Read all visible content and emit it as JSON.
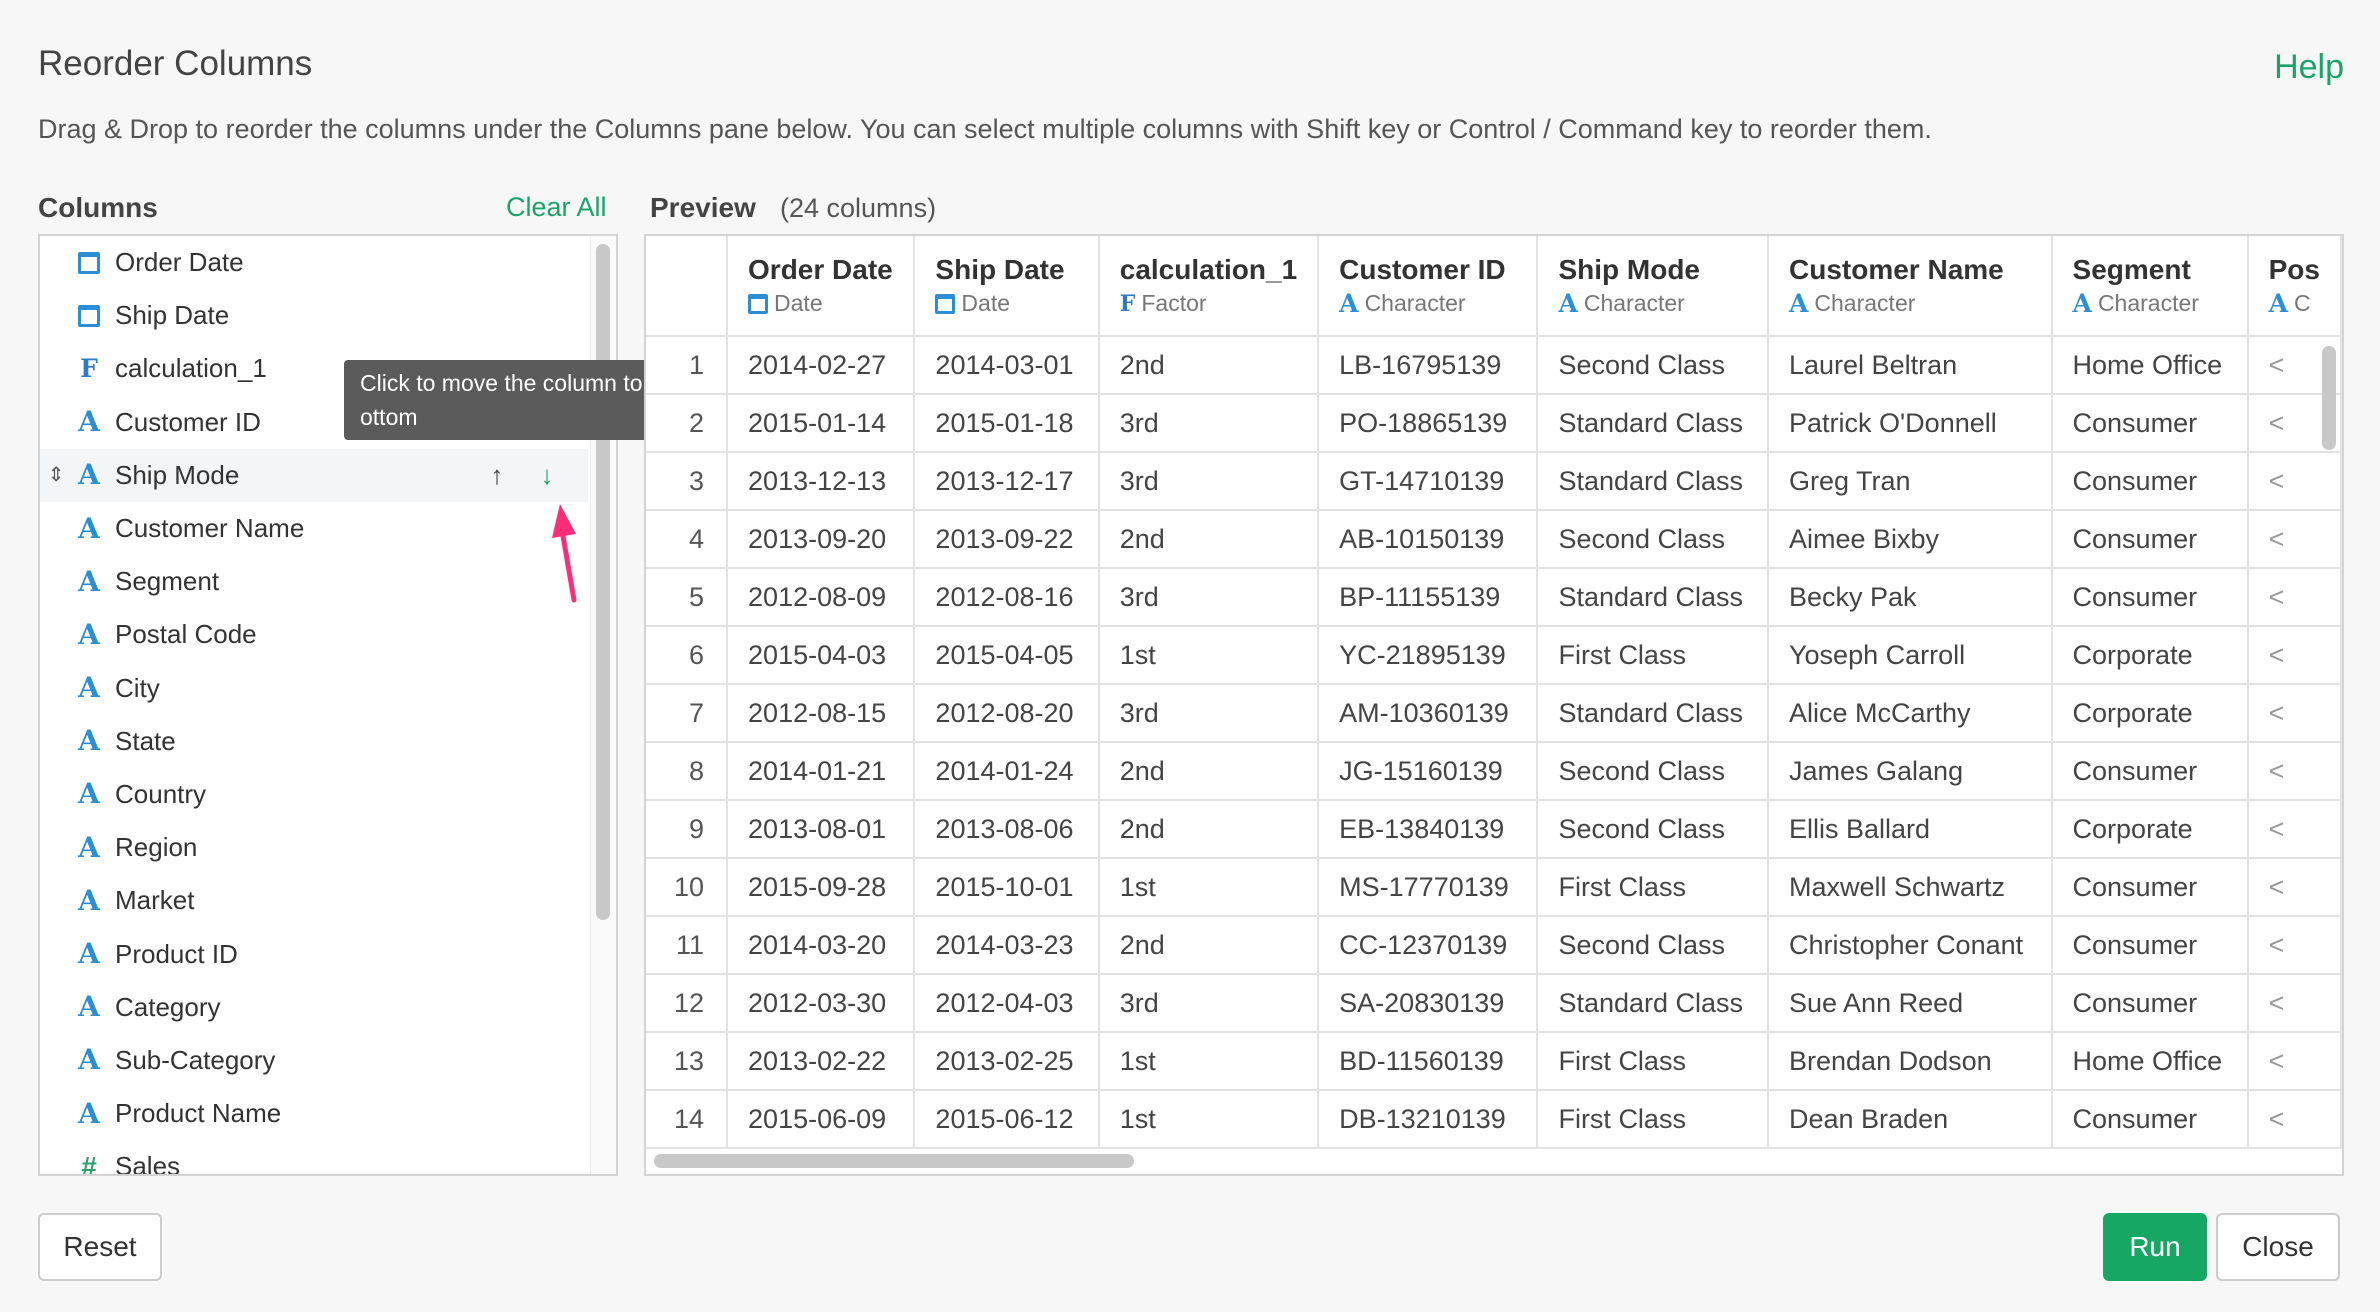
{
  "dialog": {
    "title": "Reorder Columns",
    "help_label": "Help",
    "description": "Drag & Drop to reorder the columns under the Columns pane below. You can select multiple columns with Shift key or Control / Command key to reorder them."
  },
  "columns_pane": {
    "header": "Columns",
    "clear_all_label": "Clear All",
    "items": [
      {
        "label": "Order Date",
        "icon": "calendar-icon"
      },
      {
        "label": "Ship Date",
        "icon": "calendar-icon"
      },
      {
        "label": "calculation_1",
        "icon": "factor-icon"
      },
      {
        "label": "Customer ID",
        "icon": "character-icon"
      },
      {
        "label": "Ship Mode",
        "icon": "character-icon"
      },
      {
        "label": "Customer Name",
        "icon": "character-icon"
      },
      {
        "label": "Segment",
        "icon": "character-icon"
      },
      {
        "label": "Postal Code",
        "icon": "character-icon"
      },
      {
        "label": "City",
        "icon": "character-icon"
      },
      {
        "label": "State",
        "icon": "character-icon"
      },
      {
        "label": "Country",
        "icon": "character-icon"
      },
      {
        "label": "Region",
        "icon": "character-icon"
      },
      {
        "label": "Market",
        "icon": "character-icon"
      },
      {
        "label": "Product ID",
        "icon": "character-icon"
      },
      {
        "label": "Category",
        "icon": "character-icon"
      },
      {
        "label": "Sub-Category",
        "icon": "character-icon"
      },
      {
        "label": "Product Name",
        "icon": "character-icon"
      },
      {
        "label": "Sales",
        "icon": "numeric-icon"
      }
    ],
    "tooltip": "Click to move the column to the b ottom"
  },
  "preview": {
    "header": "Preview",
    "count": "(24 columns)",
    "columns": [
      {
        "name": "Order Date",
        "type": "Date",
        "icon": "calendar-icon"
      },
      {
        "name": "Ship Date",
        "type": "Date",
        "icon": "calendar-icon"
      },
      {
        "name": "calculation_1",
        "type": "Factor",
        "icon": "factor-icon"
      },
      {
        "name": "Customer ID",
        "type": "Character",
        "icon": "character-icon"
      },
      {
        "name": "Ship Mode",
        "type": "Character",
        "icon": "character-icon"
      },
      {
        "name": "Customer Name",
        "type": "Character",
        "icon": "character-icon"
      },
      {
        "name": "Segment",
        "type": "Character",
        "icon": "character-icon"
      },
      {
        "name": "Pos",
        "type": "C",
        "icon": "character-icon"
      }
    ],
    "rows": [
      [
        "1",
        "2014-02-27",
        "2014-03-01",
        "2nd",
        "LB-16795139",
        "Second Class",
        "Laurel Beltran",
        "Home Office",
        "<"
      ],
      [
        "2",
        "2015-01-14",
        "2015-01-18",
        "3rd",
        "PO-18865139",
        "Standard Class",
        "Patrick O'Donnell",
        "Consumer",
        "<"
      ],
      [
        "3",
        "2013-12-13",
        "2013-12-17",
        "3rd",
        "GT-14710139",
        "Standard Class",
        "Greg Tran",
        "Consumer",
        "<"
      ],
      [
        "4",
        "2013-09-20",
        "2013-09-22",
        "2nd",
        "AB-10150139",
        "Second Class",
        "Aimee Bixby",
        "Consumer",
        "<"
      ],
      [
        "5",
        "2012-08-09",
        "2012-08-16",
        "3rd",
        "BP-11155139",
        "Standard Class",
        "Becky Pak",
        "Consumer",
        "<"
      ],
      [
        "6",
        "2015-04-03",
        "2015-04-05",
        "1st",
        "YC-21895139",
        "First Class",
        "Yoseph Carroll",
        "Corporate",
        "<"
      ],
      [
        "7",
        "2012-08-15",
        "2012-08-20",
        "3rd",
        "AM-10360139",
        "Standard Class",
        "Alice McCarthy",
        "Corporate",
        "<"
      ],
      [
        "8",
        "2014-01-21",
        "2014-01-24",
        "2nd",
        "JG-15160139",
        "Second Class",
        "James Galang",
        "Consumer",
        "<"
      ],
      [
        "9",
        "2013-08-01",
        "2013-08-06",
        "2nd",
        "EB-13840139",
        "Second Class",
        "Ellis Ballard",
        "Corporate",
        "<"
      ],
      [
        "10",
        "2015-09-28",
        "2015-10-01",
        "1st",
        "MS-17770139",
        "First Class",
        "Maxwell Schwartz",
        "Consumer",
        "<"
      ],
      [
        "11",
        "2014-03-20",
        "2014-03-23",
        "2nd",
        "CC-12370139",
        "Second Class",
        "Christopher Conant",
        "Consumer",
        "<"
      ],
      [
        "12",
        "2012-03-30",
        "2012-04-03",
        "3rd",
        "SA-20830139",
        "Standard Class",
        "Sue Ann Reed",
        "Consumer",
        "<"
      ],
      [
        "13",
        "2013-02-22",
        "2013-02-25",
        "1st",
        "BD-11560139",
        "First Class",
        "Brendan Dodson",
        "Home Office",
        "<"
      ],
      [
        "14",
        "2015-06-09",
        "2015-06-12",
        "1st",
        "DB-13210139",
        "First Class",
        "Dean Braden",
        "Consumer",
        "<"
      ]
    ]
  },
  "footer": {
    "reset_label": "Reset",
    "run_label": "Run",
    "close_label": "Close"
  },
  "colors": {
    "accent_green": "#16a765",
    "link_green": "#1aa36b",
    "type_blue": "#2a8fd6",
    "annotation_pink": "#ff2d78"
  }
}
